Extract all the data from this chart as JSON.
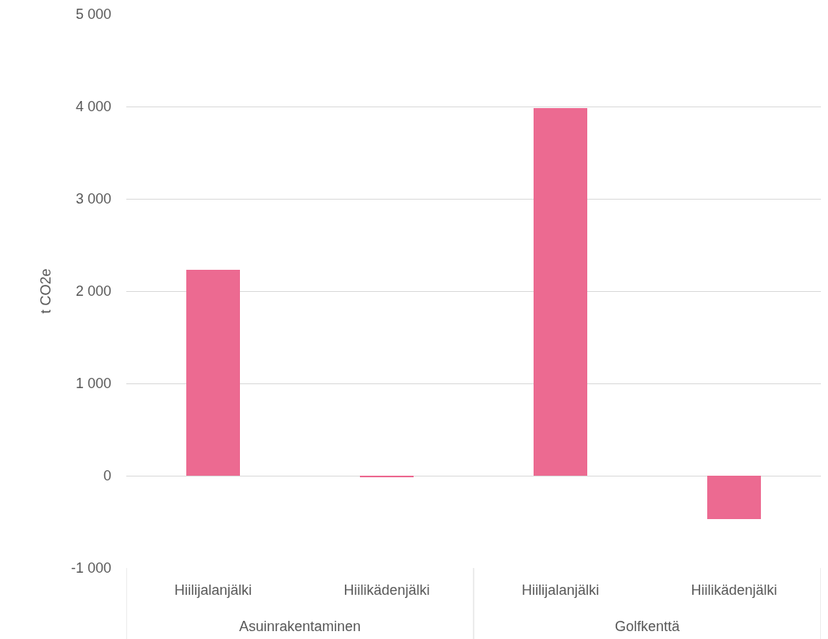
{
  "chart_data": {
    "type": "bar",
    "ylabel": "t CO2e",
    "categories": [
      "Hiilijalanjälki",
      "Hiilikädenjälki",
      "Hiilijalanjälki",
      "Hiilikädenjälki"
    ],
    "values": [
      2230,
      -20,
      3980,
      -470
    ],
    "color": "#ec6a91",
    "annotations": [
      "Asuinrakentaminen",
      "Golfkenttä"
    ],
    "ylim": [
      -1000,
      5000
    ],
    "yticks": [
      {
        "value": -1000,
        "label": "-1 000"
      },
      0,
      {
        "value": 1000,
        "label": "1 000"
      },
      {
        "value": 2000,
        "label": "2 000"
      },
      {
        "value": 3000,
        "label": "3 000"
      },
      {
        "value": 4000,
        "label": "4 000"
      },
      {
        "value": 5000,
        "label": "5 000"
      }
    ],
    "grid": "y"
  }
}
